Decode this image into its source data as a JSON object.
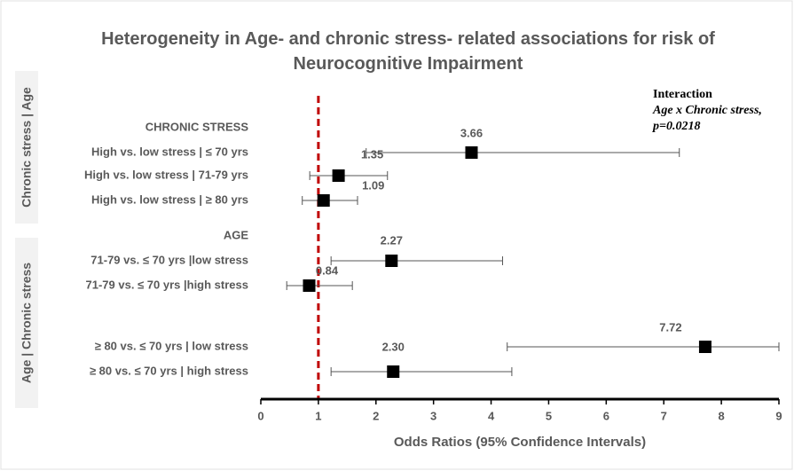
{
  "chart_data": {
    "type": "forest",
    "title": "Heterogeneity in Age- and chronic stress- related associations for risk of Neurocognitive Impairment",
    "xlabel": "Odds Ratios (95% Confidence Intervals)",
    "xlim": [
      0,
      9
    ],
    "xticks": [
      0,
      1,
      2,
      3,
      4,
      5,
      6,
      7,
      8,
      9
    ],
    "reference_line": 1,
    "reference_color": "#c00000",
    "marker_color": "#000000",
    "side_labels": [
      "Chronic stress | Age",
      "Age | Chronic stress"
    ],
    "annotation": [
      "Interaction",
      "Age x Chronic stress,",
      "p=0.0218"
    ],
    "sections": [
      {
        "header": "CHRONIC STRESS",
        "categories": [
          "High vs.  low stress | ≤ 70 yrs",
          "High vs.  low  stress | 71-79 yrs",
          "High vs.  low stress | ≥ 80 yrs"
        ],
        "values": [
          3.66,
          1.35,
          1.09
        ],
        "value_labels": [
          "3.66",
          "1.35",
          "1.09"
        ],
        "lower": [
          1.83,
          0.85,
          0.72
        ],
        "upper": [
          7.27,
          2.2,
          1.68
        ]
      },
      {
        "header": "AGE",
        "categories": [
          "71-79 vs. ≤ 70 yrs |low stress",
          "71-79 vs. ≤ 70 yrs |high stress",
          "≥ 80 vs. ≤ 70 yrs | low stress",
          "≥ 80 vs. ≤ 70 yrs | high stress"
        ],
        "values": [
          2.27,
          0.84,
          7.72,
          2.3
        ],
        "value_labels": [
          "2.27",
          "0.84",
          "7.72",
          "2.30"
        ],
        "lower": [
          1.22,
          0.45,
          4.28,
          1.22
        ],
        "upper": [
          4.2,
          1.59,
          9.0,
          4.36
        ]
      }
    ]
  }
}
